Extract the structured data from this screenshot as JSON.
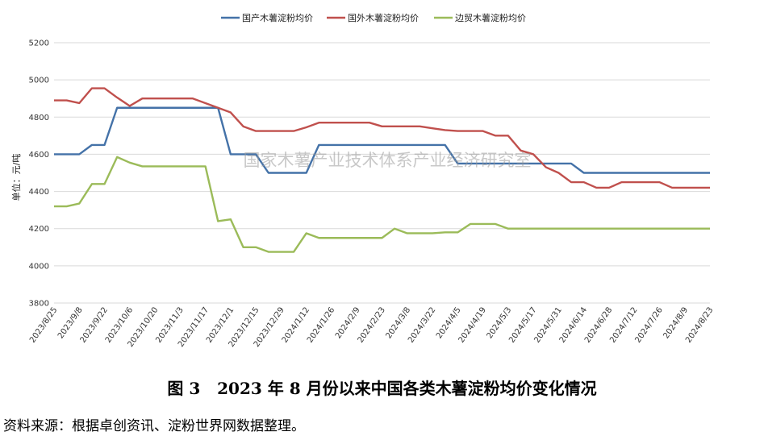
{
  "chart_data": {
    "type": "line",
    "title": "",
    "xlabel": "",
    "ylabel": "单位：元/吨",
    "ylim": [
      3800,
      5200
    ],
    "yticks": [
      3800,
      4000,
      4200,
      4400,
      4600,
      4800,
      5000,
      5200
    ],
    "grid": true,
    "legend_position": "top-center",
    "x_tick_labels": [
      "2023/8/25",
      "2023/9/8",
      "2023/9/22",
      "2023/10/6",
      "2023/10/20",
      "2023/11/3",
      "2023/11/17",
      "2023/12/1",
      "2023/12/15",
      "2023/12/29",
      "2024/1/12",
      "2024/1/26",
      "2024/2/9",
      "2024/2/23",
      "2024/3/8",
      "2024/3/22",
      "2024/4/5",
      "2024/4/19",
      "2024/5/3",
      "2024/5/17",
      "2024/5/31",
      "2024/6/14",
      "2024/6/28",
      "2024/7/12",
      "2024/7/26",
      "2024/8/9",
      "2024/8/23"
    ],
    "x_points_per_tick": 2,
    "series": [
      {
        "name": "国产木薯淀粉均价",
        "color": "#4472a8",
        "values": [
          4600,
          4600,
          4600,
          4650,
          4650,
          4850,
          4850,
          4850,
          4850,
          4850,
          4850,
          4850,
          4850,
          4850,
          4600,
          4600,
          4600,
          4500,
          4500,
          4500,
          4500,
          4650,
          4650,
          4650,
          4650,
          4650,
          4650,
          4650,
          4650,
          4650,
          4650,
          4650,
          4550,
          4550,
          4550,
          4550,
          4550,
          4550,
          4550,
          4550,
          4550,
          4550,
          4500,
          4500,
          4500,
          4500,
          4500,
          4500,
          4500,
          4500,
          4500,
          4500,
          4500
        ]
      },
      {
        "name": "国外木薯淀粉均价",
        "color": "#c0504d",
        "values": [
          4890,
          4890,
          4875,
          4955,
          4955,
          4905,
          4860,
          4900,
          4900,
          4900,
          4900,
          4900,
          4875,
          4850,
          4825,
          4750,
          4725,
          4725,
          4725,
          4725,
          4745,
          4770,
          4770,
          4770,
          4770,
          4770,
          4750,
          4750,
          4750,
          4750,
          4740,
          4730,
          4725,
          4725,
          4725,
          4700,
          4700,
          4620,
          4600,
          4530,
          4500,
          4450,
          4450,
          4420,
          4420,
          4450,
          4450,
          4450,
          4450,
          4420,
          4420,
          4420,
          4420
        ]
      },
      {
        "name": "边贸木薯淀粉均价",
        "color": "#9bbb59",
        "values": [
          4320,
          4320,
          4335,
          4440,
          4440,
          4585,
          4555,
          4535,
          4535,
          4535,
          4535,
          4535,
          4535,
          4240,
          4250,
          4100,
          4100,
          4075,
          4075,
          4075,
          4175,
          4150,
          4150,
          4150,
          4150,
          4150,
          4150,
          4200,
          4175,
          4175,
          4175,
          4180,
          4180,
          4225,
          4225,
          4225,
          4200,
          4200,
          4200,
          4200,
          4200,
          4200,
          4200,
          4200,
          4200,
          4200,
          4200,
          4200,
          4200,
          4200,
          4200,
          4200,
          4200
        ]
      }
    ]
  },
  "watermark": "国家木薯产业技术体系产业经济研究室",
  "caption": "图 3   2023 年 8 月份以来中国各类木薯淀粉均价变化情况",
  "source": "资料来源：根据卓创资讯、淀粉世界网数据整理。"
}
